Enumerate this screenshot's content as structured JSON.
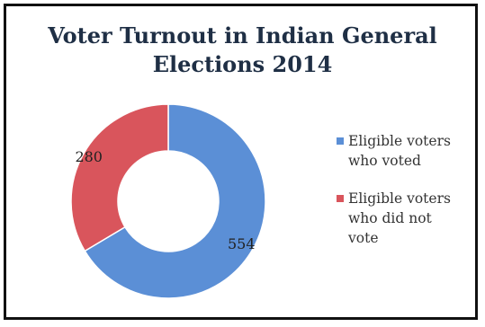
{
  "chart_data": {
    "type": "pie",
    "title": "Voter Turnout in Indian General Elections 2014",
    "title_lines": [
      "Voter Turnout in Indian General",
      "Elections 2014"
    ],
    "style": "donut",
    "categories": [
      "Eligible voters who voted",
      "Eligible voters who did not vote"
    ],
    "legend_labels": [
      "Eligible voters\nwho voted",
      "Eligible voters\nwho did not\nvote"
    ],
    "values": [
      554,
      280
    ],
    "data_labels": [
      "554",
      "280"
    ],
    "colors": [
      "#5b8fd6",
      "#d9555c"
    ],
    "legend_position": "right"
  }
}
